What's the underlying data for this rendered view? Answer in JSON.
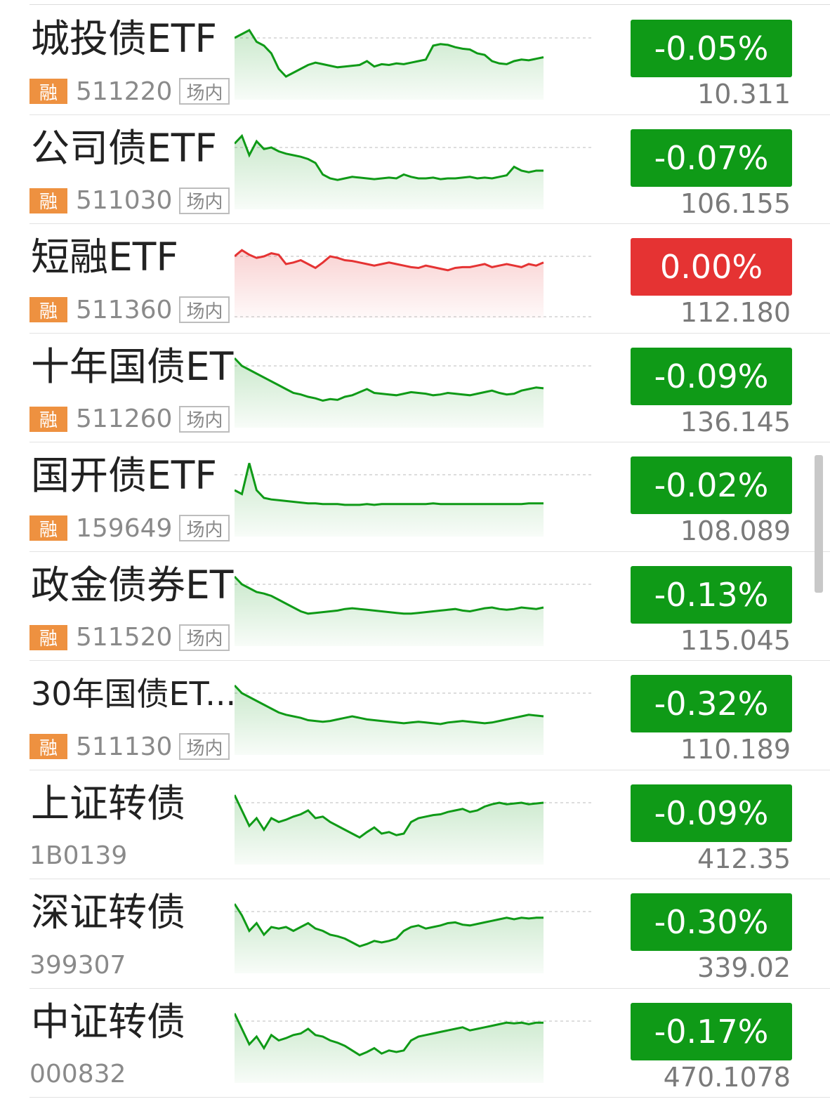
{
  "colors": {
    "down": "#0f9a17",
    "flat": "#e53333",
    "up": "#e53333",
    "tag_rong": "#ee9140"
  },
  "rows": [
    {
      "name": "城投债ETF",
      "tag": "融",
      "code": "511220",
      "market": "场内",
      "change": "-0.05%",
      "price": "10.311",
      "trend": "down",
      "spark": [
        80,
        85,
        90,
        75,
        70,
        60,
        40,
        30,
        35,
        40,
        45,
        48,
        46,
        44,
        42,
        43,
        44,
        45,
        50,
        43,
        46,
        45,
        47,
        46,
        48,
        50,
        52,
        70,
        72,
        71,
        68,
        66,
        65,
        60,
        58,
        50,
        47,
        46,
        50,
        52,
        51,
        53,
        55
      ]
    },
    {
      "name": "公司债ETF",
      "tag": "融",
      "code": "511030",
      "market": "场内",
      "change": "-0.07%",
      "price": "106.155",
      "trend": "down",
      "spark": [
        85,
        95,
        70,
        88,
        78,
        80,
        75,
        72,
        70,
        68,
        65,
        60,
        45,
        40,
        38,
        40,
        42,
        41,
        40,
        39,
        40,
        41,
        40,
        45,
        42,
        40,
        40,
        41,
        39,
        40,
        40,
        41,
        42,
        40,
        41,
        40,
        42,
        44,
        55,
        50,
        48,
        50,
        50
      ]
    },
    {
      "name": "短融ETF",
      "tag": "融",
      "code": "511360",
      "market": "场内",
      "change": "0.00%",
      "price": "112.180",
      "trend": "flat",
      "spark": [
        80,
        88,
        82,
        78,
        80,
        84,
        82,
        70,
        72,
        75,
        70,
        65,
        72,
        80,
        78,
        75,
        74,
        72,
        70,
        68,
        70,
        72,
        70,
        68,
        66,
        65,
        68,
        66,
        64,
        62,
        65,
        66,
        66,
        68,
        70,
        66,
        68,
        70,
        68,
        66,
        70,
        68,
        72
      ]
    },
    {
      "name": "十年国债ETF",
      "tag": "融",
      "code": "511260",
      "market": "场内",
      "change": "-0.09%",
      "price": "136.145",
      "trend": "down",
      "spark": [
        90,
        80,
        75,
        70,
        65,
        60,
        55,
        50,
        45,
        43,
        40,
        38,
        35,
        37,
        36,
        40,
        42,
        46,
        50,
        45,
        44,
        43,
        42,
        44,
        46,
        45,
        44,
        42,
        43,
        45,
        44,
        43,
        42,
        44,
        46,
        48,
        45,
        43,
        44,
        48,
        50,
        52,
        51
      ]
    },
    {
      "name": "国开债ETF",
      "tag": "融",
      "code": "159649",
      "market": "场内",
      "change": "-0.02%",
      "price": "108.089",
      "trend": "down",
      "spark": [
        60,
        55,
        95,
        60,
        50,
        48,
        47,
        46,
        45,
        44,
        43,
        43,
        42,
        42,
        42,
        41,
        41,
        41,
        42,
        41,
        42,
        42,
        42,
        42,
        42,
        42,
        42,
        43,
        42,
        42,
        42,
        42,
        42,
        42,
        42,
        42,
        42,
        42,
        42,
        42,
        43,
        43,
        43
      ]
    },
    {
      "name": "政金债券ETF",
      "tag": "融",
      "code": "511520",
      "market": "场内",
      "change": "-0.13%",
      "price": "115.045",
      "trend": "down",
      "spark": [
        90,
        80,
        75,
        70,
        68,
        65,
        60,
        55,
        50,
        45,
        42,
        43,
        44,
        45,
        46,
        48,
        49,
        48,
        47,
        46,
        45,
        44,
        43,
        42,
        42,
        43,
        44,
        45,
        46,
        47,
        48,
        46,
        45,
        47,
        49,
        50,
        48,
        47,
        48,
        50,
        49,
        48,
        50
      ]
    },
    {
      "name": "30年国债ET...",
      "tag": "融",
      "code": "511130",
      "market": "场内",
      "change": "-0.32%",
      "price": "110.189",
      "trend": "down",
      "spark": [
        90,
        80,
        75,
        70,
        65,
        60,
        55,
        52,
        50,
        48,
        45,
        44,
        43,
        44,
        46,
        48,
        50,
        48,
        46,
        45,
        44,
        43,
        42,
        41,
        42,
        43,
        42,
        41,
        40,
        42,
        43,
        44,
        43,
        42,
        41,
        42,
        44,
        46,
        48,
        50,
        52,
        51,
        50
      ]
    },
    {
      "name": "上证转债",
      "tag": "",
      "code": "1B0139",
      "market": "",
      "change": "-0.09%",
      "price": "412.35",
      "trend": "down",
      "spark": [
        90,
        70,
        50,
        60,
        45,
        60,
        55,
        58,
        62,
        65,
        70,
        60,
        62,
        55,
        50,
        45,
        40,
        35,
        42,
        48,
        40,
        42,
        38,
        40,
        55,
        60,
        62,
        64,
        65,
        68,
        70,
        72,
        68,
        70,
        75,
        78,
        80,
        78,
        79,
        80,
        78,
        79,
        80
      ]
    },
    {
      "name": "深证转债",
      "tag": "",
      "code": "399307",
      "market": "",
      "change": "-0.30%",
      "price": "339.02",
      "trend": "down",
      "spark": [
        90,
        75,
        55,
        65,
        50,
        60,
        58,
        60,
        55,
        60,
        65,
        58,
        55,
        50,
        48,
        45,
        40,
        35,
        38,
        42,
        40,
        42,
        45,
        55,
        60,
        62,
        58,
        60,
        62,
        65,
        66,
        63,
        62,
        64,
        66,
        68,
        70,
        72,
        70,
        72,
        71,
        72,
        72
      ]
    },
    {
      "name": "中证转债",
      "tag": "",
      "code": "000832",
      "market": "",
      "change": "-0.17%",
      "price": "470.1078",
      "trend": "down",
      "spark": [
        90,
        70,
        50,
        60,
        45,
        62,
        55,
        58,
        62,
        64,
        70,
        62,
        60,
        55,
        52,
        48,
        42,
        36,
        40,
        45,
        38,
        42,
        40,
        42,
        55,
        60,
        62,
        64,
        66,
        68,
        70,
        72,
        68,
        70,
        72,
        74,
        76,
        78,
        77,
        78,
        76,
        78,
        78
      ]
    }
  ]
}
